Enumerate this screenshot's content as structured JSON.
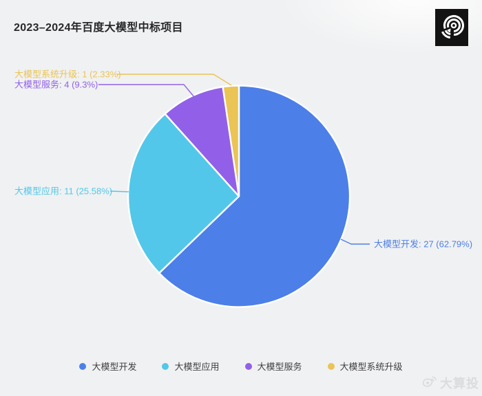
{
  "header": {
    "title": "2023–2024年百度大模型中标项目"
  },
  "chart_data": {
    "type": "pie",
    "title": "2023–2024年百度大模型中标项目",
    "legend_position": "bottom",
    "label_format": "{name}: {value} ({pct}%)",
    "series": [
      {
        "name": "大模型开发",
        "value": 27,
        "pct": "62.79",
        "label": "大模型开发: 27 (62.79%)",
        "color": "#4C7FE8"
      },
      {
        "name": "大模型应用",
        "value": 11,
        "pct": "25.58",
        "label": "大模型应用: 11 (25.58%)",
        "color": "#52C7EA"
      },
      {
        "name": "大模型服务",
        "value": 4,
        "pct": "9.3",
        "label": "大模型服务: 4 (9.3%)",
        "color": "#9260E8"
      },
      {
        "name": "大模型系统升级",
        "value": 1,
        "pct": "2.33",
        "label": "大模型系统升级: 1 (2.33%)",
        "color": "#EAC454"
      }
    ]
  },
  "icons": {
    "top_right_logo": "concentric-arcs-brand-logo",
    "watermark_icon": "weibo-icon"
  },
  "watermark": {
    "text": "大算投"
  },
  "colors": {
    "background": "#F0F1F2",
    "title_text": "#28282A",
    "legend_text": "#3F3F42",
    "slice_border": "#FFFFFF",
    "watermark_text": "#DBDCDE"
  }
}
